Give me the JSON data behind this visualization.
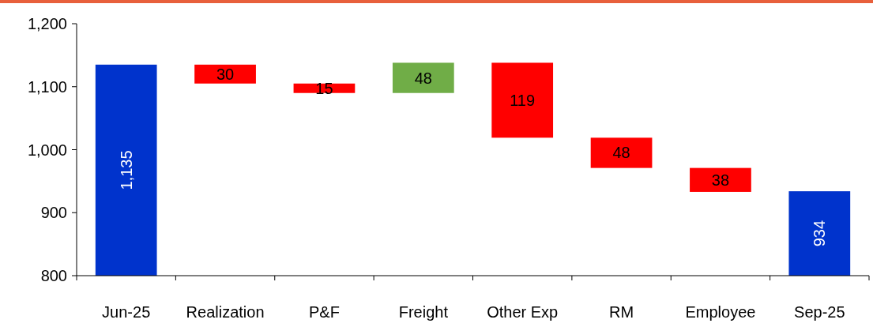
{
  "chart_data": {
    "type": "bar",
    "categories": [
      "Jun-25",
      "Realization",
      "P&F",
      "Freight",
      "Other Exp",
      "RM",
      "Employee",
      "Sep-25"
    ],
    "values": [
      1135,
      30,
      15,
      48,
      119,
      48,
      38,
      934
    ],
    "base": [
      null,
      1105,
      1090,
      1090,
      1019,
      971,
      933,
      null
    ],
    "colors": [
      "#0033cc",
      "#ff0000",
      "#ff0000",
      "#70ad47",
      "#ff0000",
      "#ff0000",
      "#ff0000",
      "#0033cc"
    ],
    "value_labels": [
      "1,135",
      "30",
      "15",
      "48",
      "119",
      "48",
      "38",
      "934"
    ],
    "ylim": [
      800,
      1200
    ],
    "yticks": [
      {
        "value": 800,
        "label": "800"
      },
      {
        "value": 900,
        "label": "900"
      },
      {
        "value": 1000,
        "label": "1,000"
      },
      {
        "value": 1100,
        "label": "1,100"
      },
      {
        "value": 1200,
        "label": "1,200"
      }
    ],
    "grid": false
  }
}
